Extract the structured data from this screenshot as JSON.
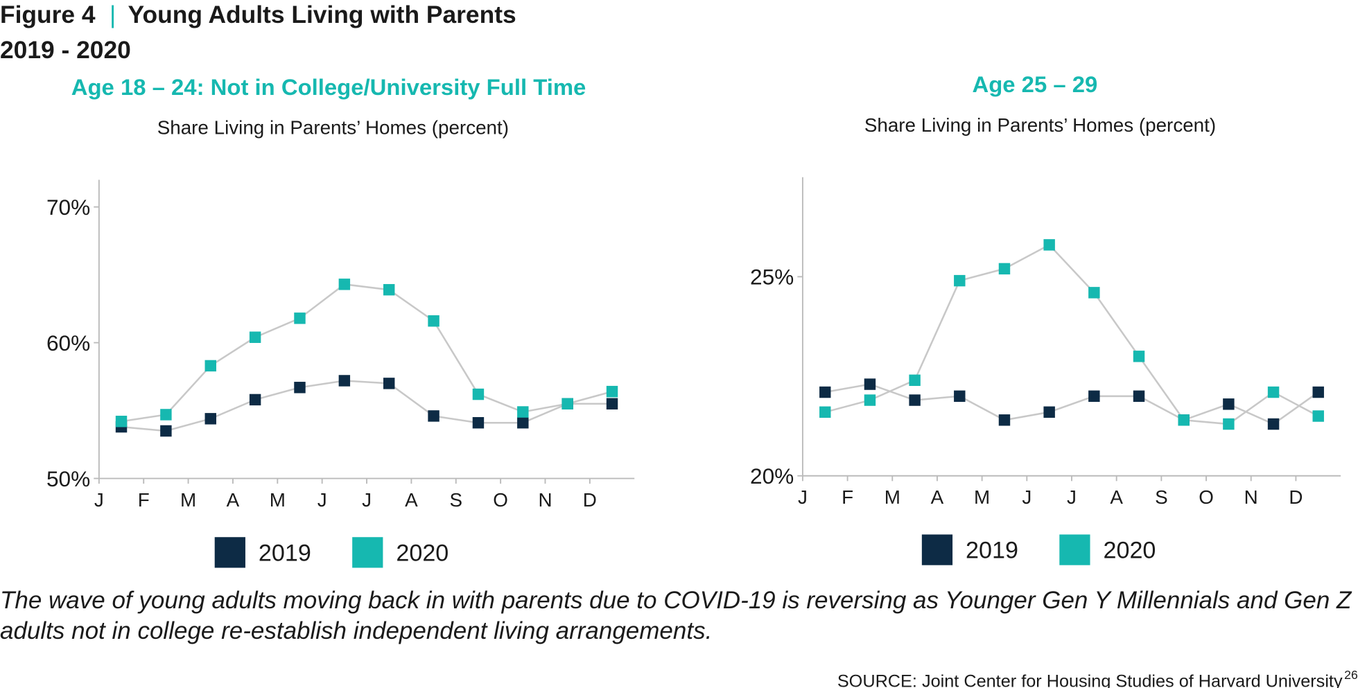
{
  "header": {
    "figure": "Figure 4",
    "title": "Young Adults Living with Parents",
    "subtitle": "2019 - 2020"
  },
  "chart_data": [
    {
      "type": "line",
      "title": "Age 18 – 24: Not in College/University Full Time",
      "y_label": "Share Living in Parents’ Homes (percent)",
      "x": [
        0.5,
        1.5,
        2.5,
        3.5,
        4.5,
        5.5,
        6.5,
        7.5,
        8.5,
        9.5,
        10.5,
        11.5
      ],
      "xlim": [
        0,
        12
      ],
      "xticks": [
        {
          "value": 0,
          "label": "J"
        },
        {
          "value": 1,
          "label": "F"
        },
        {
          "value": 2,
          "label": "M"
        },
        {
          "value": 3,
          "label": "A"
        },
        {
          "value": 4,
          "label": "M"
        },
        {
          "value": 5,
          "label": "J"
        },
        {
          "value": 6,
          "label": "J"
        },
        {
          "value": 7,
          "label": "A"
        },
        {
          "value": 8,
          "label": "S"
        },
        {
          "value": 9,
          "label": "O"
        },
        {
          "value": 10,
          "label": "N"
        },
        {
          "value": 11,
          "label": "D"
        }
      ],
      "ylim": [
        50,
        72
      ],
      "yticks": [
        {
          "value": 50,
          "label": "50%"
        },
        {
          "value": 60,
          "label": "60%"
        },
        {
          "value": 70,
          "label": "70%"
        }
      ],
      "line_color": "#c8c8c8",
      "series": [
        {
          "name": "2019",
          "color": "#0d2b45",
          "values": [
            53.8,
            53.5,
            54.4,
            55.8,
            56.7,
            57.2,
            57.0,
            54.6,
            54.1,
            54.1,
            55.5,
            55.5
          ]
        },
        {
          "name": "2020",
          "color": "#16b8b0",
          "values": [
            54.2,
            54.7,
            58.3,
            60.4,
            61.8,
            64.3,
            63.9,
            61.6,
            56.2,
            54.9,
            55.5,
            56.4
          ]
        }
      ]
    },
    {
      "type": "line",
      "title": "Age 25 – 29",
      "y_label": "Share Living in Parents’ Homes (percent)",
      "x": [
        0.5,
        1.5,
        2.5,
        3.5,
        4.5,
        5.5,
        6.5,
        7.5,
        8.5,
        9.5,
        10.5,
        11.5
      ],
      "xlim": [
        0,
        12
      ],
      "xticks": [
        {
          "value": 0,
          "label": "J"
        },
        {
          "value": 1,
          "label": "F"
        },
        {
          "value": 2,
          "label": "M"
        },
        {
          "value": 3,
          "label": "A"
        },
        {
          "value": 4,
          "label": "M"
        },
        {
          "value": 5,
          "label": "J"
        },
        {
          "value": 6,
          "label": "J"
        },
        {
          "value": 7,
          "label": "A"
        },
        {
          "value": 8,
          "label": "S"
        },
        {
          "value": 9,
          "label": "O"
        },
        {
          "value": 10,
          "label": "N"
        },
        {
          "value": 11,
          "label": "D"
        }
      ],
      "ylim": [
        20,
        27.5
      ],
      "yticks": [
        {
          "value": 20,
          "label": "20%"
        },
        {
          "value": 25,
          "label": "25%"
        }
      ],
      "line_color": "#c8c8c8",
      "series": [
        {
          "name": "2019",
          "color": "#0d2b45",
          "values": [
            22.1,
            22.3,
            21.9,
            22.0,
            21.4,
            21.6,
            22.0,
            22.0,
            21.4,
            21.8,
            21.3,
            22.1
          ]
        },
        {
          "name": "2020",
          "color": "#16b8b0",
          "values": [
            21.6,
            21.9,
            22.4,
            24.9,
            25.2,
            25.8,
            24.6,
            23.0,
            21.4,
            21.3,
            22.1,
            21.5
          ]
        }
      ]
    }
  ],
  "caption": "The wave of young adults moving back in with parents due to COVID-19 is reversing as Younger Gen Y Millennials and Gen Z adults not in college re-establish independent living arrangements.",
  "source": {
    "text": "SOURCE: Joint Center for Housing Studies of Harvard University",
    "note": "26"
  }
}
